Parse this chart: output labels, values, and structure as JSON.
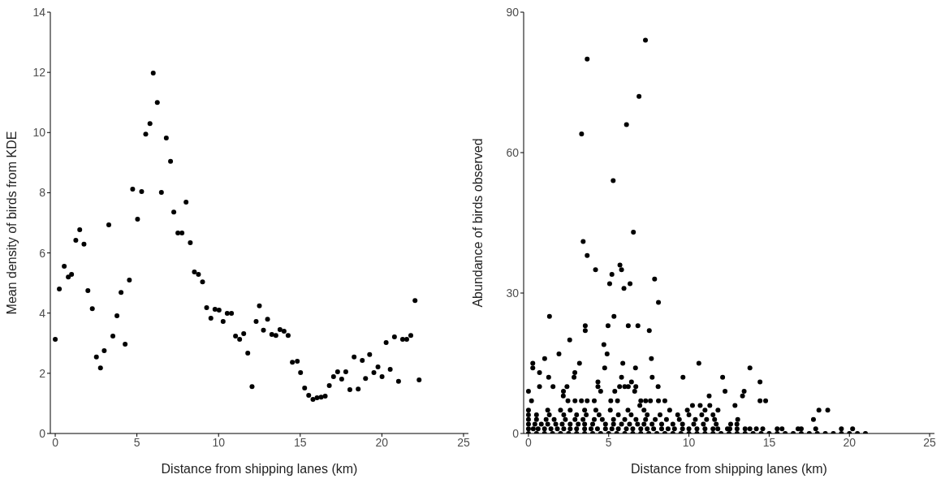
{
  "chart_data": [
    {
      "type": "scatter",
      "xlabel": "Distance from shipping lanes (km)",
      "ylabel": "Mean density of birds from KDE",
      "xlim": [
        -0.3,
        25.3
      ],
      "xticks": [
        0,
        5,
        10,
        15,
        20,
        25
      ],
      "ylim": [
        0,
        14
      ],
      "yticks": [
        0,
        2,
        4,
        6,
        8,
        10,
        12,
        14
      ],
      "grid": false,
      "marker": "circle",
      "series": [
        {
          "color": "#000000",
          "x": [
            0,
            0.25,
            0.55,
            0.8,
            1.0,
            1.26,
            1.5,
            1.76,
            2.0,
            2.27,
            2.52,
            2.77,
            3.0,
            3.28,
            3.53,
            3.78,
            4.03,
            4.28,
            4.54,
            4.74,
            5.04,
            5.29,
            5.54,
            5.8,
            6.0,
            6.25,
            6.5,
            6.8,
            7.06,
            7.26,
            7.51,
            7.76,
            8.01,
            8.27,
            8.52,
            8.77,
            9.02,
            9.27,
            9.53,
            9.78,
            10.03,
            10.28,
            10.53,
            10.79,
            11.04,
            11.29,
            11.54,
            11.79,
            12.05,
            12.3,
            12.5,
            12.75,
            13.0,
            13.26,
            13.51,
            13.76,
            14.01,
            14.26,
            14.52,
            14.82,
            15.02,
            15.27,
            15.52,
            15.78,
            16.03,
            16.28,
            16.53,
            16.78,
            17.04,
            17.29,
            17.54,
            17.79,
            18.04,
            18.3,
            18.55,
            18.8,
            19.0,
            19.25,
            19.51,
            19.76,
            20.01,
            20.26,
            20.51,
            20.77,
            21.02,
            21.27,
            21.52,
            21.77,
            22.03,
            22.28
          ],
          "values": [
            3.13,
            4.8,
            5.56,
            5.2,
            5.29,
            6.42,
            6.77,
            6.29,
            4.75,
            4.15,
            2.54,
            2.18,
            2.75,
            6.93,
            3.24,
            3.91,
            4.69,
            2.97,
            5.1,
            8.12,
            7.12,
            8.04,
            9.95,
            10.3,
            11.98,
            11.0,
            8.01,
            9.82,
            9.04,
            7.36,
            6.66,
            6.66,
            7.69,
            6.34,
            5.37,
            5.29,
            5.04,
            4.18,
            3.83,
            4.13,
            4.1,
            3.72,
            3.99,
            3.99,
            3.24,
            3.13,
            3.32,
            2.67,
            1.56,
            3.72,
            4.24,
            3.43,
            3.8,
            3.29,
            3.26,
            3.45,
            3.4,
            3.26,
            2.37,
            2.4,
            2.02,
            1.51,
            1.27,
            1.13,
            1.19,
            1.21,
            1.24,
            1.59,
            1.89,
            2.05,
            1.81,
            2.05,
            1.46,
            2.54,
            1.48,
            2.43,
            1.83,
            2.62,
            2.02,
            2.21,
            1.89,
            3.02,
            2.13,
            3.21,
            1.73,
            3.13,
            3.13,
            3.26,
            4.42,
            1.78
          ]
        }
      ]
    },
    {
      "type": "scatter",
      "xlabel": "Distance from shipping lanes (km)",
      "ylabel": "Abundance of birds observed",
      "xlim": [
        -0.3,
        25.3
      ],
      "xticks": [
        0,
        5,
        10,
        15,
        20,
        25
      ],
      "ylim": [
        0,
        90
      ],
      "yticks": [
        0,
        30,
        60,
        90
      ],
      "grid": false,
      "marker": "circle",
      "series": [
        {
          "color": "#000000",
          "x": [
            7.29,
            3.66,
            6.89,
            6.11,
            3.31,
            5.28,
            6.54,
            3.41,
            3.66,
            5.7,
            4.18,
            5.8,
            5.2,
            7.86,
            5.06,
            6.33,
            5.95,
            8.1,
            1.31,
            5.33,
            3.54,
            4.96,
            6.22,
            6.82,
            3.54,
            7.53,
            2.57,
            4.7,
            1.9,
            4.9,
            1.01,
            7.66,
            0.27,
            3.18,
            5.88,
            10.62,
            0.27,
            4.75,
            6.67,
            13.8,
            0.69,
            2.89,
            1.26,
            2.84,
            5.8,
            7.71,
            9.63,
            12.1,
            4.33,
            6.42,
            14.43,
            0.69,
            1.53,
            2.4,
            4.33,
            5.68,
            6.0,
            6.22,
            6.69,
            8.08,
            0,
            2.18,
            4.5,
            5.38,
            6.62,
            12.25,
            13.44,
            2.17,
            11.26,
            13.34,
            0.19,
            2.46,
            2.9,
            3.3,
            3.66,
            4.1,
            5.13,
            5.55,
            7.0,
            7.3,
            7.6,
            8.1,
            8.5,
            14.43,
            14.78,
            6.94,
            10.22,
            10.7,
            11.3,
            12.87,
            0,
            1.2,
            2.0,
            2.6,
            3.5,
            4.2,
            5.1,
            6.2,
            7.2,
            8.8,
            9.9,
            11.0,
            11.81,
            18.1,
            18.65,
            0,
            0.5,
            1.3,
            2.2,
            3.0,
            3.6,
            4.4,
            5.6,
            6.4,
            7.4,
            8.2,
            9.3,
            10.0,
            10.8,
            11.5,
            0,
            0.5,
            1.1,
            1.6,
            2.3,
            2.9,
            3.4,
            4.1,
            4.6,
            5.3,
            6.0,
            6.7,
            7.3,
            7.9,
            8.6,
            9.4,
            10.4,
            11.1,
            11.6,
            13.04,
            17.76,
            0,
            0.4,
            0.8,
            1.2,
            1.7,
            2.1,
            2.6,
            3.1,
            3.5,
            4.0,
            4.8,
            5.3,
            5.8,
            6.3,
            6.8,
            7.2,
            7.7,
            8.3,
            9.0,
            9.6,
            10.3,
            10.9,
            11.7,
            12.6,
            12.99,
            0,
            0.3,
            0.6,
            1.0,
            1.4,
            1.8,
            2.2,
            2.6,
            3.0,
            3.5,
            3.9,
            4.3,
            4.8,
            5.2,
            5.6,
            6.1,
            6.5,
            7.0,
            7.4,
            7.8,
            8.3,
            8.7,
            9.1,
            9.6,
            10.0,
            10.5,
            11.0,
            11.5,
            11.8,
            12.4,
            12.55,
            13.0,
            13.5,
            13.8,
            14.2,
            14.6,
            15.5,
            15.8,
            16.8,
            17.0,
            17.9,
            19.5,
            20.2,
            0,
            0.5,
            1.0,
            1.5,
            2.0,
            2.5,
            3.0,
            3.5,
            4.0,
            4.5,
            5.0,
            5.5,
            6.0,
            6.5,
            7.0,
            7.5,
            8.0,
            8.5,
            9.0,
            9.5,
            10.0,
            10.5,
            11.0,
            11.5,
            12.0,
            12.5,
            13.0,
            13.5,
            14.0,
            14.5,
            15.0,
            15.5,
            16.0,
            16.5,
            17.0,
            17.5,
            18.0,
            18.5,
            19.0,
            19.5,
            20.0,
            20.5,
            21.0
          ],
          "values": [
            84,
            80,
            72,
            66,
            64,
            54,
            43,
            41,
            38,
            36,
            35,
            35,
            34,
            33,
            32,
            32,
            31,
            28,
            25,
            25,
            23,
            23,
            23,
            23,
            22,
            22,
            20,
            19,
            17,
            17,
            16,
            16,
            15,
            15,
            15,
            15,
            14,
            14,
            14,
            14,
            13,
            13,
            12,
            12,
            12,
            12,
            12,
            12,
            11,
            11,
            11,
            10,
            10,
            10,
            10,
            10,
            10,
            10,
            10,
            10,
            9,
            9,
            9,
            9,
            9,
            9,
            9,
            8,
            8,
            8,
            7,
            7,
            7,
            7,
            7,
            7,
            7,
            7,
            7,
            7,
            7,
            7,
            7,
            7,
            7,
            6,
            6,
            6,
            6,
            6,
            5,
            5,
            5,
            5,
            5,
            5,
            5,
            5,
            5,
            5,
            5,
            5,
            5,
            5,
            5,
            4,
            4,
            4,
            4,
            4,
            4,
            4,
            4,
            4,
            4,
            4,
            4,
            4,
            4,
            4,
            3,
            3,
            3,
            3,
            3,
            3,
            3,
            3,
            3,
            3,
            3,
            3,
            3,
            3,
            3,
            3,
            3,
            3,
            3,
            3,
            3,
            2,
            2,
            2,
            2,
            2,
            2,
            2,
            2,
            2,
            2,
            2,
            2,
            2,
            2,
            2,
            2,
            2,
            2,
            2,
            2,
            2,
            2,
            2,
            2,
            2,
            1,
            1,
            1,
            1,
            1,
            1,
            1,
            1,
            1,
            1,
            1,
            1,
            1,
            1,
            1,
            1,
            1,
            1,
            1,
            1,
            1,
            1,
            1,
            1,
            1,
            1,
            1,
            1,
            1,
            1,
            1,
            1,
            1,
            1,
            1,
            1,
            1,
            1,
            1,
            1,
            1,
            1,
            1,
            0,
            0,
            0,
            0,
            0,
            0,
            0,
            0,
            0,
            0,
            0,
            0,
            0,
            0,
            0,
            0,
            0,
            0,
            0,
            0,
            0,
            0,
            0,
            0,
            0,
            0,
            0,
            0,
            0,
            0,
            0,
            0,
            0,
            0,
            0,
            0,
            0,
            0,
            0,
            0,
            0,
            0,
            0
          ]
        }
      ]
    }
  ]
}
